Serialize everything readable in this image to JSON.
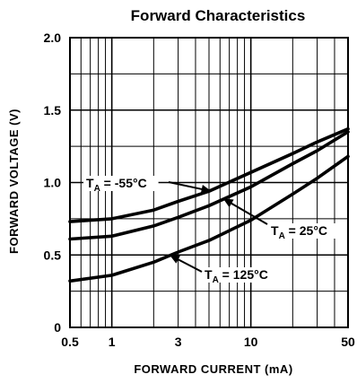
{
  "chart_data": {
    "type": "line",
    "title": "Forward Characteristics",
    "xlabel": "FORWARD CURRENT (mA)",
    "ylabel": "FORWARD VOLTAGE (V)",
    "x_scale": "log",
    "xlim": [
      0.5,
      50
    ],
    "ylim": [
      0,
      2.0
    ],
    "grid": true,
    "x_ticks": [
      {
        "value": 0.5,
        "label": "0.5"
      },
      {
        "value": 1,
        "label": "1"
      },
      {
        "value": 3,
        "label": "3"
      },
      {
        "value": 10,
        "label": "10"
      },
      {
        "value": 50,
        "label": "50"
      }
    ],
    "y_ticks": [
      {
        "value": 0,
        "label": "0"
      },
      {
        "value": 0.5,
        "label": "0.5"
      },
      {
        "value": 1.0,
        "label": "1.0"
      },
      {
        "value": 1.5,
        "label": "1.5"
      },
      {
        "value": 2.0,
        "label": "2.0"
      }
    ],
    "series": [
      {
        "name": "T_A = -55°C",
        "x": [
          0.5,
          1,
          2,
          3,
          5,
          10,
          20,
          30,
          50
        ],
        "y": [
          0.73,
          0.75,
          0.81,
          0.87,
          0.94,
          1.07,
          1.2,
          1.28,
          1.37
        ]
      },
      {
        "name": "T_A = 25°C",
        "x": [
          0.5,
          1,
          2,
          3,
          5,
          10,
          20,
          30,
          50
        ],
        "y": [
          0.61,
          0.63,
          0.7,
          0.76,
          0.84,
          0.97,
          1.13,
          1.22,
          1.35
        ]
      },
      {
        "name": "T_A = 125°C",
        "x": [
          0.5,
          1,
          2,
          3,
          5,
          10,
          20,
          30,
          50
        ],
        "y": [
          0.32,
          0.36,
          0.45,
          0.52,
          0.6,
          0.74,
          0.92,
          1.03,
          1.18
        ]
      }
    ],
    "annotations": [
      {
        "prefix": "T",
        "sub": "A",
        "rest": " = -55°C",
        "series_index": 0,
        "arrow_to": {
          "x": 5.2,
          "y": 0.94
        }
      },
      {
        "prefix": "T",
        "sub": "A",
        "rest": " = 25°C",
        "series_index": 1,
        "arrow_to": {
          "x": 6.3,
          "y": 0.89
        }
      },
      {
        "prefix": "T",
        "sub": "A",
        "rest": " = 125°C",
        "series_index": 2,
        "arrow_to": {
          "x": 2.6,
          "y": 0.5
        }
      }
    ]
  }
}
